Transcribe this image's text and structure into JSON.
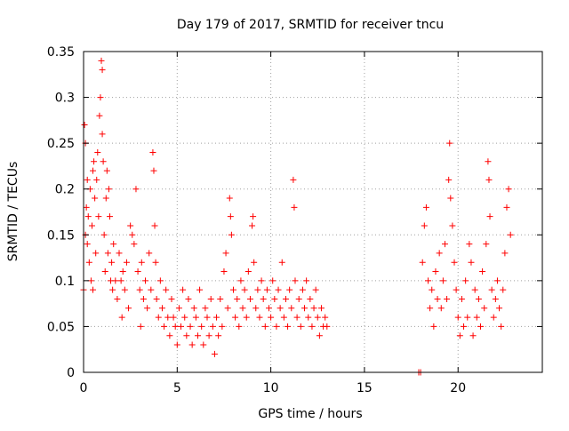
{
  "chart_data": {
    "type": "scatter",
    "title": "Day 179 of 2017, SRMTID for receiver tncu",
    "xlabel": "GPS time / hours",
    "ylabel": "SRMTID / TECUs",
    "xlim": [
      0,
      24.5
    ],
    "ylim": [
      0,
      0.35
    ],
    "xticks": [
      0,
      5,
      10,
      15,
      20
    ],
    "xtick_labels": [
      "0",
      "5",
      "10",
      "15",
      "20"
    ],
    "yticks": [
      0,
      0.05,
      0.1,
      0.15,
      0.2,
      0.25,
      0.3,
      0.35
    ],
    "ytick_labels": [
      "0",
      "0.05",
      "0.1",
      "0.15",
      "0.2",
      "0.25",
      "0.3",
      "0.35"
    ],
    "grid": true,
    "marker": "+",
    "series": [
      {
        "name": "SRMTID",
        "color": "#ff0000",
        "points": [
          [
            0.0,
            0.09
          ],
          [
            0.05,
            0.27
          ],
          [
            0.1,
            0.25
          ],
          [
            0.1,
            0.15
          ],
          [
            0.15,
            0.18
          ],
          [
            0.2,
            0.14
          ],
          [
            0.2,
            0.21
          ],
          [
            0.25,
            0.17
          ],
          [
            0.3,
            0.12
          ],
          [
            0.35,
            0.2
          ],
          [
            0.4,
            0.1
          ],
          [
            0.45,
            0.16
          ],
          [
            0.5,
            0.22
          ],
          [
            0.5,
            0.09
          ],
          [
            0.55,
            0.23
          ],
          [
            0.6,
            0.19
          ],
          [
            0.65,
            0.13
          ],
          [
            0.7,
            0.21
          ],
          [
            0.75,
            0.24
          ],
          [
            0.8,
            0.17
          ],
          [
            0.85,
            0.28
          ],
          [
            0.9,
            0.3
          ],
          [
            0.95,
            0.34
          ],
          [
            1.0,
            0.33
          ],
          [
            1.0,
            0.26
          ],
          [
            1.05,
            0.23
          ],
          [
            1.1,
            0.15
          ],
          [
            1.15,
            0.11
          ],
          [
            1.2,
            0.19
          ],
          [
            1.25,
            0.22
          ],
          [
            1.3,
            0.13
          ],
          [
            1.35,
            0.2
          ],
          [
            1.4,
            0.17
          ],
          [
            1.45,
            0.1
          ],
          [
            1.5,
            0.12
          ],
          [
            1.55,
            0.09
          ],
          [
            1.6,
            0.14
          ],
          [
            1.7,
            0.1
          ],
          [
            1.8,
            0.08
          ],
          [
            1.9,
            0.13
          ],
          [
            2.0,
            0.1
          ],
          [
            2.05,
            0.06
          ],
          [
            2.1,
            0.11
          ],
          [
            2.2,
            0.09
          ],
          [
            2.3,
            0.12
          ],
          [
            2.4,
            0.07
          ],
          [
            2.5,
            0.16
          ],
          [
            2.6,
            0.15
          ],
          [
            2.7,
            0.14
          ],
          [
            2.8,
            0.2
          ],
          [
            2.9,
            0.11
          ],
          [
            3.0,
            0.09
          ],
          [
            3.05,
            0.05
          ],
          [
            3.1,
            0.12
          ],
          [
            3.2,
            0.08
          ],
          [
            3.3,
            0.1
          ],
          [
            3.4,
            0.07
          ],
          [
            3.5,
            0.13
          ],
          [
            3.6,
            0.09
          ],
          [
            3.7,
            0.24
          ],
          [
            3.75,
            0.22
          ],
          [
            3.8,
            0.16
          ],
          [
            3.85,
            0.12
          ],
          [
            3.9,
            0.08
          ],
          [
            4.0,
            0.06
          ],
          [
            4.1,
            0.1
          ],
          [
            4.2,
            0.07
          ],
          [
            4.3,
            0.05
          ],
          [
            4.4,
            0.09
          ],
          [
            4.5,
            0.06
          ],
          [
            4.6,
            0.04
          ],
          [
            4.7,
            0.08
          ],
          [
            4.8,
            0.06
          ],
          [
            4.9,
            0.05
          ],
          [
            5.0,
            0.03
          ],
          [
            5.1,
            0.07
          ],
          [
            5.2,
            0.05
          ],
          [
            5.3,
            0.09
          ],
          [
            5.4,
            0.06
          ],
          [
            5.5,
            0.04
          ],
          [
            5.6,
            0.08
          ],
          [
            5.7,
            0.05
          ],
          [
            5.8,
            0.03
          ],
          [
            5.9,
            0.07
          ],
          [
            6.0,
            0.06
          ],
          [
            6.1,
            0.04
          ],
          [
            6.2,
            0.09
          ],
          [
            6.3,
            0.05
          ],
          [
            6.4,
            0.03
          ],
          [
            6.5,
            0.07
          ],
          [
            6.6,
            0.06
          ],
          [
            6.7,
            0.04
          ],
          [
            6.8,
            0.08
          ],
          [
            6.9,
            0.05
          ],
          [
            7.0,
            0.02
          ],
          [
            7.1,
            0.06
          ],
          [
            7.2,
            0.04
          ],
          [
            7.3,
            0.08
          ],
          [
            7.4,
            0.05
          ],
          [
            7.5,
            0.11
          ],
          [
            7.6,
            0.13
          ],
          [
            7.7,
            0.07
          ],
          [
            7.8,
            0.19
          ],
          [
            7.85,
            0.17
          ],
          [
            7.9,
            0.15
          ],
          [
            8.0,
            0.09
          ],
          [
            8.1,
            0.06
          ],
          [
            8.2,
            0.08
          ],
          [
            8.3,
            0.05
          ],
          [
            8.4,
            0.1
          ],
          [
            8.5,
            0.07
          ],
          [
            8.6,
            0.09
          ],
          [
            8.7,
            0.06
          ],
          [
            8.8,
            0.11
          ],
          [
            8.9,
            0.08
          ],
          [
            9.0,
            0.16
          ],
          [
            9.05,
            0.17
          ],
          [
            9.1,
            0.12
          ],
          [
            9.2,
            0.07
          ],
          [
            9.3,
            0.09
          ],
          [
            9.4,
            0.06
          ],
          [
            9.5,
            0.1
          ],
          [
            9.6,
            0.08
          ],
          [
            9.7,
            0.05
          ],
          [
            9.8,
            0.09
          ],
          [
            9.9,
            0.07
          ],
          [
            10.0,
            0.06
          ],
          [
            10.1,
            0.1
          ],
          [
            10.2,
            0.08
          ],
          [
            10.3,
            0.05
          ],
          [
            10.4,
            0.09
          ],
          [
            10.5,
            0.07
          ],
          [
            10.6,
            0.12
          ],
          [
            10.7,
            0.06
          ],
          [
            10.8,
            0.08
          ],
          [
            10.9,
            0.05
          ],
          [
            11.0,
            0.09
          ],
          [
            11.1,
            0.07
          ],
          [
            11.2,
            0.21
          ],
          [
            11.25,
            0.18
          ],
          [
            11.3,
            0.1
          ],
          [
            11.4,
            0.06
          ],
          [
            11.5,
            0.08
          ],
          [
            11.6,
            0.05
          ],
          [
            11.7,
            0.09
          ],
          [
            11.8,
            0.07
          ],
          [
            11.9,
            0.1
          ],
          [
            12.0,
            0.06
          ],
          [
            12.1,
            0.08
          ],
          [
            12.2,
            0.05
          ],
          [
            12.3,
            0.07
          ],
          [
            12.4,
            0.09
          ],
          [
            12.5,
            0.06
          ],
          [
            12.6,
            0.04
          ],
          [
            12.7,
            0.07
          ],
          [
            12.8,
            0.05
          ],
          [
            12.9,
            0.06
          ],
          [
            13.0,
            0.05
          ],
          [
            17.9,
            0.0
          ],
          [
            18.0,
            0.0
          ],
          [
            18.1,
            0.12
          ],
          [
            18.2,
            0.16
          ],
          [
            18.3,
            0.18
          ],
          [
            18.4,
            0.1
          ],
          [
            18.5,
            0.07
          ],
          [
            18.6,
            0.09
          ],
          [
            18.7,
            0.05
          ],
          [
            18.8,
            0.11
          ],
          [
            18.9,
            0.08
          ],
          [
            19.0,
            0.13
          ],
          [
            19.1,
            0.07
          ],
          [
            19.2,
            0.1
          ],
          [
            19.3,
            0.14
          ],
          [
            19.4,
            0.08
          ],
          [
            19.5,
            0.21
          ],
          [
            19.55,
            0.25
          ],
          [
            19.6,
            0.19
          ],
          [
            19.7,
            0.16
          ],
          [
            19.8,
            0.12
          ],
          [
            19.9,
            0.09
          ],
          [
            20.0,
            0.06
          ],
          [
            20.1,
            0.04
          ],
          [
            20.2,
            0.08
          ],
          [
            20.3,
            0.05
          ],
          [
            20.4,
            0.1
          ],
          [
            20.5,
            0.06
          ],
          [
            20.6,
            0.14
          ],
          [
            20.7,
            0.12
          ],
          [
            20.8,
            0.04
          ],
          [
            20.9,
            0.09
          ],
          [
            21.0,
            0.06
          ],
          [
            21.1,
            0.08
          ],
          [
            21.2,
            0.05
          ],
          [
            21.3,
            0.11
          ],
          [
            21.4,
            0.07
          ],
          [
            21.5,
            0.14
          ],
          [
            21.6,
            0.23
          ],
          [
            21.65,
            0.21
          ],
          [
            21.7,
            0.17
          ],
          [
            21.8,
            0.09
          ],
          [
            21.9,
            0.06
          ],
          [
            22.0,
            0.08
          ],
          [
            22.1,
            0.1
          ],
          [
            22.2,
            0.07
          ],
          [
            22.3,
            0.05
          ],
          [
            22.4,
            0.09
          ],
          [
            22.5,
            0.13
          ],
          [
            22.6,
            0.18
          ],
          [
            22.7,
            0.2
          ],
          [
            22.8,
            0.15
          ]
        ]
      }
    ]
  }
}
